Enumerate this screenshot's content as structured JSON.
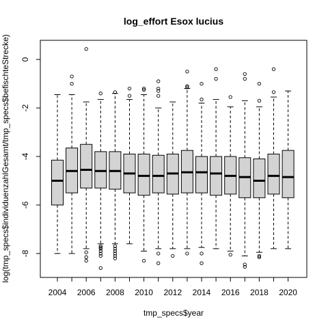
{
  "chart_data": {
    "type": "boxplot",
    "title": "log_effort Esox lucius",
    "xlabel": "tmp_specs$year",
    "ylabel": "log(tmp_specs$individuenzahlGesamt/tmp_specs$befischteStrecke)",
    "ylim": [
      -9,
      0.7
    ],
    "yticks": [
      0,
      -2,
      -4,
      -6,
      -8
    ],
    "xtick_labels": [
      "2004",
      "2006",
      "2008",
      "2010",
      "2012",
      "2014",
      "2016",
      "2018",
      "2020"
    ],
    "grid": false,
    "legend": "none",
    "box_fill": "#d3d3d3",
    "boxes": [
      {
        "year": "2004",
        "whislo": -8.0,
        "q1": -6.0,
        "med": -5.0,
        "q3": -4.15,
        "whishi": -1.45,
        "fliers": []
      },
      {
        "year": "2005",
        "whislo": -8.0,
        "q1": -5.5,
        "med": -4.6,
        "q3": -3.65,
        "whishi": -1.45,
        "fliers": [
          -1.0,
          -0.7
        ]
      },
      {
        "year": "2006",
        "whislo": -7.8,
        "q1": -5.3,
        "med": -4.55,
        "q3": -3.5,
        "whishi": -1.75,
        "fliers": [
          0.43,
          -7.95,
          -8.15,
          -8.3
        ]
      },
      {
        "year": "2007",
        "whislo": -7.6,
        "q1": -5.3,
        "med": -4.6,
        "q3": -3.8,
        "whishi": -1.65,
        "fliers": [
          -1.4,
          -7.7,
          -7.75,
          -7.8,
          -7.9,
          -8.0,
          -8.1,
          -8.6
        ]
      },
      {
        "year": "2008",
        "whislo": -7.6,
        "q1": -5.35,
        "med": -4.6,
        "q3": -3.8,
        "whishi": -1.4,
        "fliers": [
          -1.35,
          -7.7,
          -7.8,
          -7.9,
          -8.0,
          -8.1,
          -8.2
        ]
      },
      {
        "year": "2009",
        "whislo": -7.6,
        "q1": -5.5,
        "med": -4.7,
        "q3": -3.9,
        "whishi": -1.65,
        "fliers": [
          -1.2,
          -1.5
        ]
      },
      {
        "year": "2010",
        "whislo": -7.9,
        "q1": -5.6,
        "med": -4.8,
        "q3": -3.9,
        "whishi": -1.45,
        "fliers": [
          -1.2,
          -1.25,
          -8.3
        ]
      },
      {
        "year": "2011",
        "whislo": -7.8,
        "q1": -5.5,
        "med": -4.8,
        "q3": -3.95,
        "whishi": -2.0,
        "fliers": [
          -0.9,
          -1.2,
          -1.3,
          -1.5,
          -8.0,
          -8.4
        ]
      },
      {
        "year": "2012",
        "whislo": -7.8,
        "q1": -5.55,
        "med": -4.7,
        "q3": -3.9,
        "whishi": -1.75,
        "fliers": [
          -8.1
        ]
      },
      {
        "year": "2013",
        "whislo": -7.8,
        "q1": -5.5,
        "med": -4.65,
        "q3": -3.75,
        "whishi": -1.2,
        "fliers": [
          -0.5,
          -1.1,
          -1.15,
          -8.0
        ]
      },
      {
        "year": "2014",
        "whislo": -7.75,
        "q1": -5.5,
        "med": -4.65,
        "q3": -4.0,
        "whishi": -1.8,
        "fliers": [
          -1.0,
          -1.65,
          -8.0,
          -8.4
        ]
      },
      {
        "year": "2015",
        "whislo": -7.8,
        "q1": -5.6,
        "med": -4.7,
        "q3": -4.0,
        "whishi": -1.65,
        "fliers": [
          -0.4,
          -0.8
        ]
      },
      {
        "year": "2016",
        "whislo": -7.9,
        "q1": -5.55,
        "med": -4.8,
        "q3": -4.0,
        "whishi": -1.95,
        "fliers": [
          -1.55,
          -8.05
        ]
      },
      {
        "year": "2017",
        "whislo": -8.1,
        "q1": -5.7,
        "med": -4.85,
        "q3": -4.05,
        "whishi": -1.7,
        "fliers": [
          -0.6,
          -0.8,
          -8.45,
          -8.55
        ]
      },
      {
        "year": "2018",
        "whislo": -7.95,
        "q1": -5.7,
        "med": -5.0,
        "q3": -4.1,
        "whishi": -1.95,
        "fliers": [
          -1.0,
          -1.7,
          -8.1,
          -8.15
        ]
      },
      {
        "year": "2019",
        "whislo": -7.8,
        "q1": -5.55,
        "med": -4.8,
        "q3": -3.9,
        "whishi": -1.55,
        "fliers": [
          -0.4,
          -1.35
        ]
      },
      {
        "year": "2020",
        "whislo": -7.8,
        "q1": -5.7,
        "med": -4.85,
        "q3": -3.75,
        "whishi": -1.3,
        "fliers": []
      }
    ]
  }
}
